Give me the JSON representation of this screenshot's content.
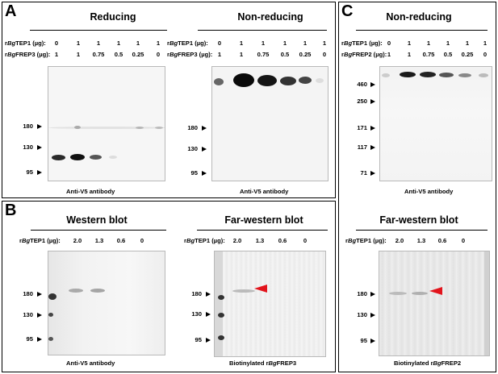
{
  "panel_a": {
    "letter": "A",
    "left_title": "Reducing",
    "right_title": "Non-reducing",
    "row1_label": "rBgTEP1 (µg):",
    "row2_label": "rBgFREP3 (µg):",
    "row1_values": [
      "0",
      "1",
      "1",
      "1",
      "1",
      "1"
    ],
    "row2_values": [
      "1",
      "1",
      "0.75",
      "0.5",
      "0.25",
      "0"
    ],
    "left_markers": [
      "180",
      "130",
      "95"
    ],
    "right_markers": [
      "180",
      "130",
      "95"
    ],
    "left_caption": "Anti-V5 antibody",
    "right_caption": "Anti-V5 antibody"
  },
  "panel_b": {
    "letter": "B",
    "left_title": "Western blot",
    "right_title": "Far-western blot",
    "row_label": "rBgTEP1 (µg):",
    "row_values": [
      "2.0",
      "1.3",
      "0.6",
      "0"
    ],
    "left_markers": [
      "180",
      "130",
      "95"
    ],
    "right_markers": [
      "180",
      "130",
      "95"
    ],
    "left_caption": "Anti-V5 antibody",
    "right_caption": "Biotinylated rBgFREP3"
  },
  "panel_c": {
    "letter": "C",
    "top_title": "Non-reducing",
    "row1_label": "rBgTEP1 (µg):",
    "row2_label": "rBgFREP2 (µg):",
    "row1_values": [
      "0",
      "1",
      "1",
      "1",
      "1",
      "1"
    ],
    "row2_values": [
      "1",
      "1",
      "0.75",
      "0.5",
      "0.25",
      "0"
    ],
    "top_markers": [
      "460",
      "250",
      "171",
      "117",
      "71"
    ],
    "top_caption": "Anti-V5 antibody",
    "bottom_title": "Far-western blot",
    "row3_label": "rBgTEP1 (µg):",
    "row3_values": [
      "2.0",
      "1.3",
      "0.6",
      "0"
    ],
    "bottom_markers": [
      "180",
      "130",
      "95"
    ],
    "bottom_caption": "Biotinylated rBgFREP2"
  },
  "colors": {
    "arrow": "#e2141c",
    "frame": "#000000"
  }
}
